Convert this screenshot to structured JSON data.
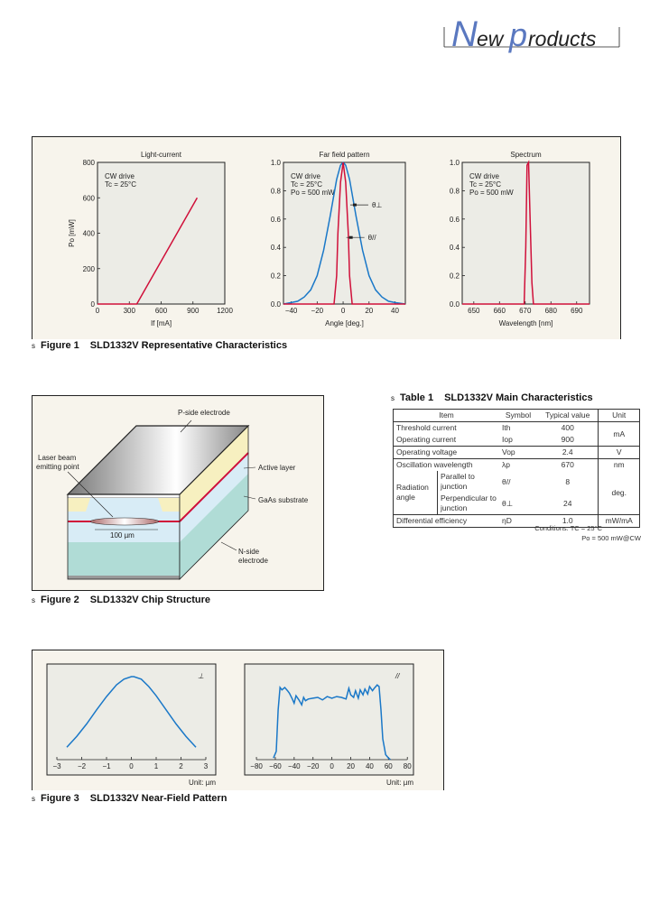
{
  "logo": {
    "text": "NewProducts",
    "color": "#5a78c0"
  },
  "colors": {
    "panel_bg": "#f7f4ec",
    "plot_bg": "#ecece6",
    "red": "#d0103a",
    "blue": "#1a78c8"
  },
  "figure1": {
    "marker": "s",
    "number": "Figure 1",
    "title": "SLD1332V Representative Characteristics"
  },
  "figure2": {
    "marker": "s",
    "number": "Figure 2",
    "title": "SLD1332V Chip Structure",
    "labels": {
      "p_side": "P-side electrode",
      "laser_beam_1": "Laser beam",
      "laser_beam_2": "emitting point",
      "active_layer": "Active layer",
      "gaas": "GaAs substrate",
      "n_side_1": "N-side",
      "n_side_2": "electrode",
      "width": "100 µm"
    }
  },
  "figure3": {
    "marker": "s",
    "number": "Figure 3",
    "title": "SLD1332V Near-Field Pattern"
  },
  "table1": {
    "marker": "s",
    "number": "Table 1",
    "title": "SLD1332V Main Characteristics",
    "headers": [
      "Item",
      "Symbol",
      "Typical value",
      "Unit"
    ],
    "rows": [
      {
        "item": "Threshold current",
        "symbol": "Ith",
        "value": "400",
        "unit": "mA"
      },
      {
        "item": "Operating current",
        "symbol": "Iop",
        "value": "900"
      },
      {
        "item": "Operating voltage",
        "symbol": "Vop",
        "value": "2.4",
        "unit": "V"
      },
      {
        "item": "Oscillation wavelength",
        "symbol": "λp",
        "value": "670",
        "unit": "nm"
      },
      {
        "item": "Radiation angle",
        "sub": "Parallel to junction",
        "symbol": "θ//",
        "value": "8",
        "unit": "deg."
      },
      {
        "sub": "Perpendicular to junction",
        "symbol": "θ⊥",
        "value": "24"
      },
      {
        "item": "Differential efficiency",
        "symbol": "ηD",
        "value": "1.0",
        "unit": "mW/mA"
      }
    ],
    "conditions_1": "Conditions: TC = 25°C",
    "conditions_2": "Po = 500 mW@CW"
  },
  "chart_data": [
    {
      "type": "line",
      "title": "Light-current",
      "xlabel": "If [mA]",
      "ylabel": "Po [mW]",
      "xlim": [
        0,
        1200
      ],
      "ylim": [
        0,
        800
      ],
      "xticks": [
        0,
        300,
        600,
        900,
        1200
      ],
      "yticks": [
        0,
        200,
        400,
        600,
        800
      ],
      "annotation": [
        "CW drive",
        "Tc = 25°C"
      ],
      "series": [
        {
          "color": "#d0103a",
          "x": [
            0,
            370,
            940
          ],
          "y": [
            0,
            0,
            600
          ]
        }
      ]
    },
    {
      "type": "line",
      "title": "Far field pattern",
      "xlabel": "Angle [deg.]",
      "ylabel": "",
      "xlim": [
        -46,
        48
      ],
      "ylim": [
        0,
        1.0
      ],
      "xticks": [
        -40,
        -20,
        0,
        20,
        40
      ],
      "yticks": [
        0.0,
        0.2,
        0.4,
        0.6,
        0.8,
        1.0
      ],
      "annotation": [
        "CW drive",
        "Tc = 25°C",
        "Po = 500 mW"
      ],
      "series": [
        {
          "name": "θ⊥",
          "color": "#1a78c8",
          "x": [
            -46,
            -40,
            -35,
            -30,
            -25,
            -20,
            -15,
            -10,
            -5,
            -2,
            0,
            2,
            5,
            10,
            15,
            20,
            25,
            30,
            35,
            40,
            48
          ],
          "y": [
            0,
            0.01,
            0.02,
            0.05,
            0.1,
            0.2,
            0.38,
            0.62,
            0.88,
            0.98,
            1.0,
            0.98,
            0.88,
            0.62,
            0.38,
            0.2,
            0.1,
            0.05,
            0.02,
            0.01,
            0
          ]
        },
        {
          "name": "θ//",
          "color": "#d0103a",
          "x": [
            -46,
            -7,
            -5,
            -4,
            -2,
            0,
            2,
            4,
            5,
            7,
            48
          ],
          "y": [
            0,
            0,
            0.2,
            0.5,
            0.86,
            1.0,
            0.86,
            0.5,
            0.2,
            0,
            0
          ]
        }
      ]
    },
    {
      "type": "line",
      "title": "Spectrum",
      "xlabel": "Wavelength [nm]",
      "ylabel": "",
      "xlim": [
        645.5,
        695
      ],
      "ylim": [
        0,
        1.0
      ],
      "xticks": [
        650,
        660,
        670,
        680,
        690
      ],
      "yticks": [
        0.0,
        0.2,
        0.4,
        0.6,
        0.8,
        1.0
      ],
      "annotation": [
        "CW drive",
        "Tc = 25°C",
        "Po = 500 mW"
      ],
      "series": [
        {
          "color": "#d0103a",
          "x": [
            645.5,
            669.6,
            670.2,
            670.7,
            671.3,
            671.9,
            672.6,
            673.2,
            695
          ],
          "y": [
            0,
            0,
            0.4,
            0.98,
            1.0,
            0.6,
            0.15,
            0,
            0
          ]
        }
      ]
    },
    {
      "type": "line",
      "title": "",
      "label": "⊥",
      "xlabel": "Unit: µm",
      "xlim": [
        -3.4,
        3.4
      ],
      "ylim": [
        0,
        1.0
      ],
      "xticks": [
        -3,
        -2,
        -1,
        0,
        1,
        2,
        3
      ],
      "series": [
        {
          "color": "#1a78c8",
          "x": [
            -2.6,
            -2.2,
            -1.8,
            -1.4,
            -1.0,
            -0.6,
            -0.3,
            0,
            0.1,
            0.4,
            0.7,
            1.0,
            1.4,
            1.8,
            2.2,
            2.6
          ],
          "y": [
            0.15,
            0.28,
            0.43,
            0.6,
            0.76,
            0.9,
            0.97,
            1.0,
            1.0,
            0.97,
            0.88,
            0.77,
            0.6,
            0.43,
            0.28,
            0.15
          ]
        }
      ]
    },
    {
      "type": "line",
      "title": "",
      "label": "//",
      "xlabel": "Unit: µm",
      "xlim": [
        -92.5,
        86.5
      ],
      "ylim": [
        0,
        1.0
      ],
      "xticks": [
        -80,
        -60,
        -40,
        -20,
        0,
        20,
        40,
        60,
        80
      ],
      "series": [
        {
          "color": "#1a78c8",
          "x": [
            -62,
            -59,
            -57,
            -55,
            -53,
            -50,
            -47,
            -45,
            -42,
            -40,
            -38,
            -35,
            -32,
            -30,
            -28,
            -25,
            -20,
            -15,
            -10,
            -5,
            0,
            5,
            10,
            15,
            18,
            20,
            23,
            25,
            28,
            30,
            33,
            35,
            38,
            40,
            43,
            45,
            48,
            50,
            52,
            54,
            57,
            60,
            62
          ],
          "y": [
            0.02,
            0.1,
            0.6,
            0.87,
            0.84,
            0.87,
            0.83,
            0.8,
            0.73,
            0.68,
            0.77,
            0.72,
            0.66,
            0.75,
            0.71,
            0.73,
            0.74,
            0.75,
            0.72,
            0.76,
            0.74,
            0.76,
            0.75,
            0.73,
            0.86,
            0.78,
            0.75,
            0.83,
            0.74,
            0.84,
            0.78,
            0.85,
            0.79,
            0.88,
            0.83,
            0.86,
            0.9,
            0.88,
            0.6,
            0.25,
            0.06,
            0.02,
            0
          ]
        }
      ]
    }
  ]
}
